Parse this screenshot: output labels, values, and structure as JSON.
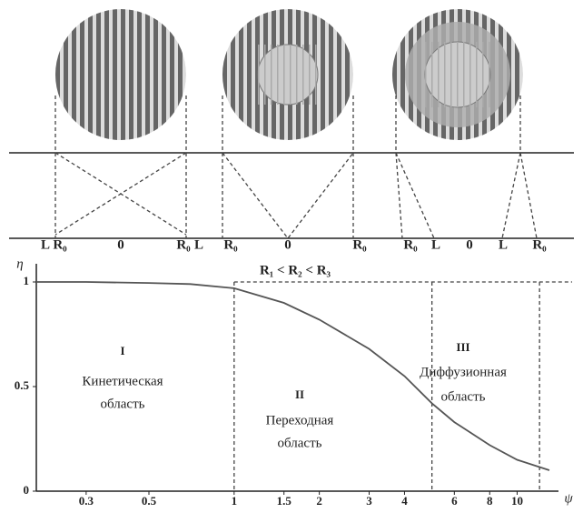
{
  "diagram": {
    "position_labels": [
      "L",
      "R₀",
      "0",
      "R₀",
      "L",
      "R₀",
      "0",
      "R₀",
      "R₀",
      "L",
      "0",
      "L",
      "R₀"
    ]
  },
  "chart_data": {
    "type": "line",
    "title": "R₁ < R₂ < R₃",
    "x_label": "ψ",
    "y_label": "η",
    "log_x": true,
    "xlim": [
      0.2,
      14
    ],
    "ylim": [
      0,
      1.1
    ],
    "xticks": [
      0.3,
      0.5,
      1,
      1.5,
      2,
      3,
      4,
      6,
      8,
      10
    ],
    "yticks": [
      0,
      0.5,
      1
    ],
    "x": [
      0.2,
      0.3,
      0.5,
      0.7,
      1,
      1.5,
      2,
      3,
      4,
      5,
      6,
      8,
      10,
      13
    ],
    "series": [
      {
        "color": "#555555",
        "values": [
          1,
          1,
          0.995,
          0.99,
          0.97,
          0.9,
          0.82,
          0.68,
          0.55,
          0.42,
          0.33,
          0.22,
          0.15,
          0.1
        ]
      }
    ],
    "boundaries": [
      1,
      5,
      12
    ],
    "reference_line": 1,
    "regions": [
      {
        "number": "I",
        "label": [
          "Кинетическая",
          "область"
        ]
      },
      {
        "number": "II",
        "label": [
          "Переходная",
          "область"
        ]
      },
      {
        "number": "III",
        "label": [
          "Диффузионная",
          "область"
        ]
      }
    ]
  }
}
